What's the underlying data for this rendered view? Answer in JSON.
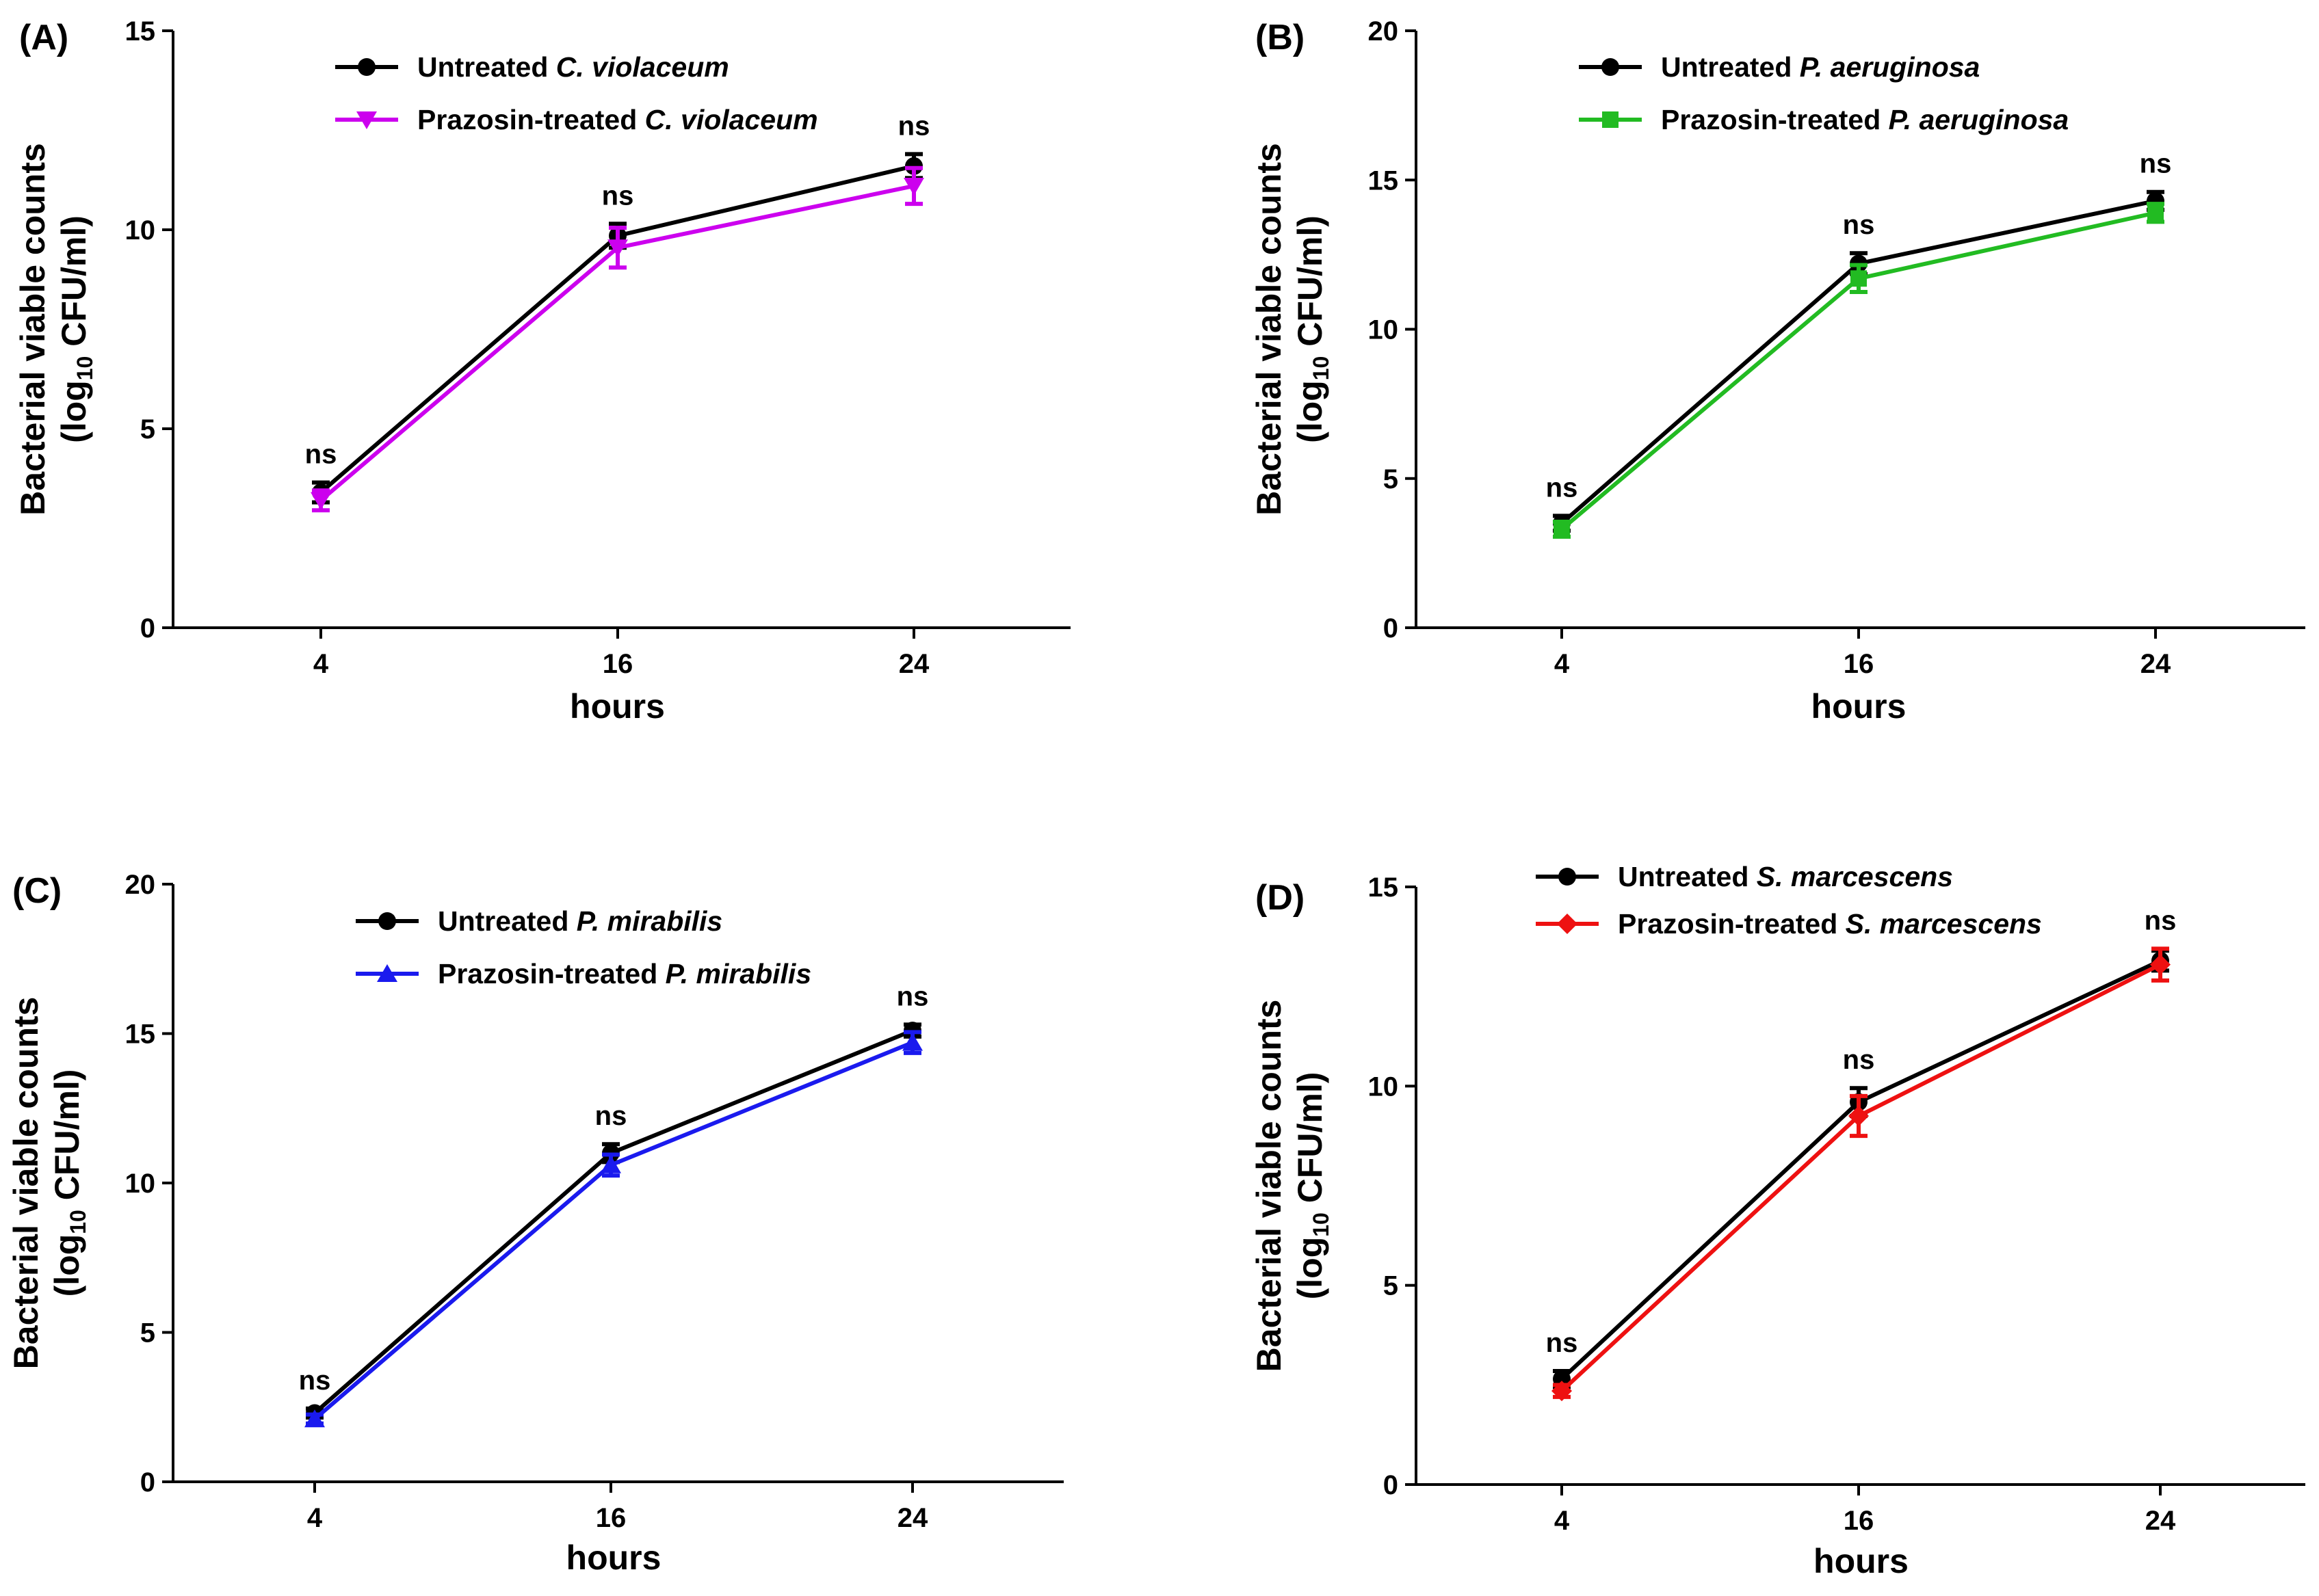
{
  "chart_data": [
    {
      "type": "line",
      "panel_label": "(A)",
      "xlabel": "hours",
      "ylabel_main": "Bacterial viable counts",
      "ylabel_pre": "(log",
      "ylabel_sub": "10",
      "ylabel_post": " CFU/ml)",
      "categories": [
        "4",
        "16",
        "24"
      ],
      "ylim": [
        0,
        15
      ],
      "yticks": [
        0,
        5,
        10,
        15
      ],
      "ytick_labels": [
        "0",
        "5",
        "10",
        "15"
      ],
      "annotations": [
        "ns",
        "ns",
        "ns"
      ],
      "legend_position": "top",
      "series": [
        {
          "name_prefix": "Untreated ",
          "name_italic": "C. violaceum",
          "color": "#000000",
          "marker": "circle",
          "values": [
            3.4,
            9.85,
            11.6
          ],
          "errors": [
            0.25,
            0.3,
            0.3
          ]
        },
        {
          "name_prefix": "Prazosin-treated ",
          "name_italic": "C. violaceum",
          "color": "#cc00ee",
          "marker": "triangle-down",
          "values": [
            3.2,
            9.55,
            11.1
          ],
          "errors": [
            0.25,
            0.5,
            0.45
          ]
        }
      ]
    },
    {
      "type": "line",
      "panel_label": "(B)",
      "xlabel": "hours",
      "ylabel_main": "Bacterial viable counts",
      "ylabel_pre": "(log",
      "ylabel_sub": "10",
      "ylabel_post": " CFU/ml)",
      "categories": [
        "4",
        "16",
        "24"
      ],
      "ylim": [
        0,
        20
      ],
      "yticks": [
        0,
        5,
        10,
        15,
        20
      ],
      "ytick_labels": [
        "0",
        "5",
        "10",
        "15",
        "20"
      ],
      "annotations": [
        "ns",
        "ns",
        "ns"
      ],
      "legend_position": "top",
      "series": [
        {
          "name_prefix": "Untreated ",
          "name_italic": "P. aeruginosa",
          "color": "#000000",
          "marker": "circle",
          "values": [
            3.5,
            12.2,
            14.3
          ],
          "errors": [
            0.25,
            0.35,
            0.3
          ]
        },
        {
          "name_prefix": "Prazosin-treated ",
          "name_italic": "P. aeruginosa",
          "color": "#22bb22",
          "marker": "square",
          "values": [
            3.3,
            11.7,
            13.9
          ],
          "errors": [
            0.25,
            0.45,
            0.3
          ]
        }
      ]
    },
    {
      "type": "line",
      "panel_label": "(C)",
      "xlabel": "hours",
      "ylabel_main": "Bacterial viable counts",
      "ylabel_pre": "(log",
      "ylabel_sub": "10",
      "ylabel_post": " CFU/ml)",
      "categories": [
        "4",
        "16",
        "24"
      ],
      "ylim": [
        0,
        20
      ],
      "yticks": [
        0,
        5,
        10,
        15,
        20
      ],
      "ytick_labels": [
        "0",
        "5",
        "10",
        "15",
        "20"
      ],
      "annotations": [
        "ns",
        "ns",
        "ns"
      ],
      "legend_position": "top",
      "series": [
        {
          "name_prefix": "Untreated ",
          "name_italic": "P.  mirabilis",
          "color": "#000000",
          "marker": "circle",
          "values": [
            2.3,
            11.0,
            15.1
          ],
          "errors": [
            0.15,
            0.3,
            0.2
          ]
        },
        {
          "name_prefix": "Prazosin-treated ",
          "name_italic": "P.  mirabilis",
          "color": "#1a1aee",
          "marker": "triangle-up",
          "values": [
            2.1,
            10.6,
            14.7
          ],
          "errors": [
            0.15,
            0.35,
            0.35
          ]
        }
      ]
    },
    {
      "type": "line",
      "panel_label": "(D)",
      "xlabel": "hours",
      "ylabel_main": "Bacterial viable counts",
      "ylabel_pre": "(log",
      "ylabel_sub": "10",
      "ylabel_post": " CFU/ml)",
      "categories": [
        "4",
        "16",
        "24"
      ],
      "ylim": [
        0,
        15
      ],
      "yticks": [
        0,
        5,
        10,
        15
      ],
      "ytick_labels": [
        "0",
        "5",
        "10",
        "15"
      ],
      "annotations": [
        "ns",
        "ns",
        "ns"
      ],
      "legend_position": "top",
      "series": [
        {
          "name_prefix": "Untreated ",
          "name_italic": "S. marcescens",
          "color": "#000000",
          "marker": "circle",
          "values": [
            2.65,
            9.6,
            13.15
          ],
          "errors": [
            0.2,
            0.35,
            0.25
          ]
        },
        {
          "name_prefix": "Prazosin-treated ",
          "name_italic": "S. marcescens",
          "color": "#ee1111",
          "marker": "diamond",
          "values": [
            2.35,
            9.25,
            13.05
          ],
          "errors": [
            0.15,
            0.5,
            0.4
          ]
        }
      ]
    }
  ]
}
